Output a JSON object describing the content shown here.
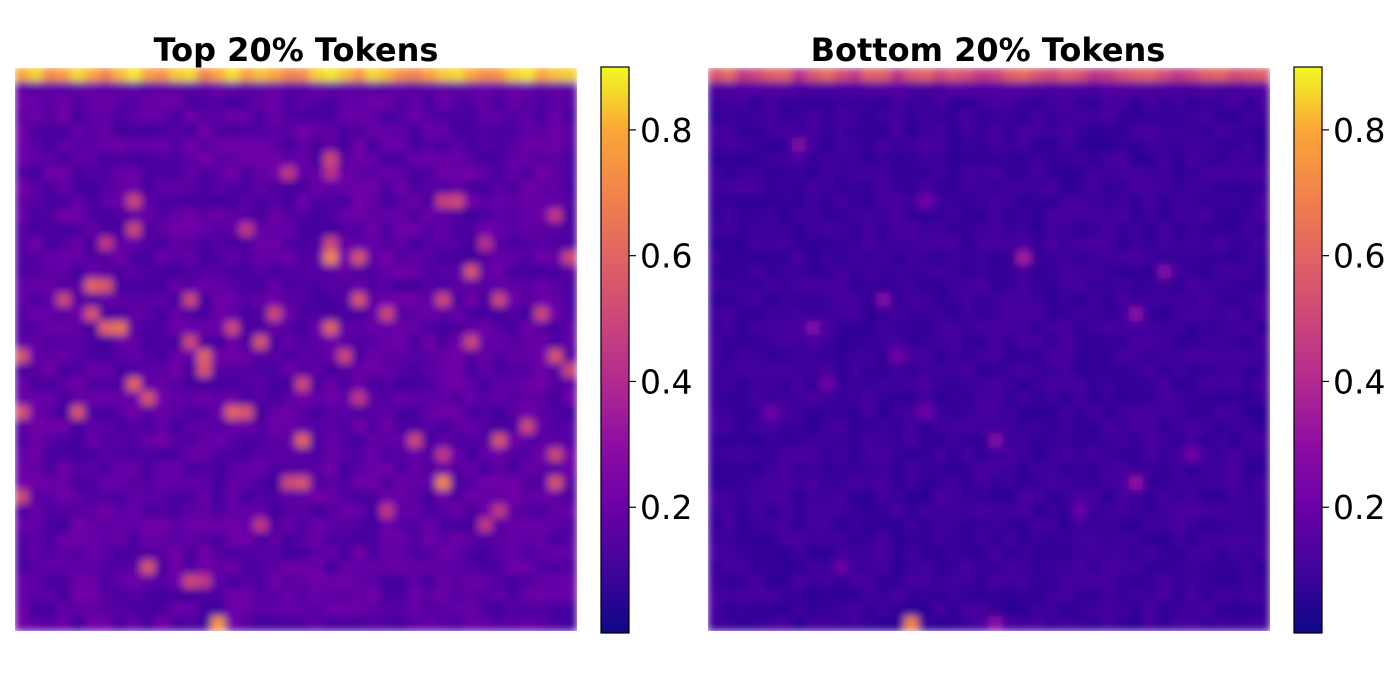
{
  "chart_data": [
    {
      "type": "heatmap",
      "title": "Top 20% Tokens",
      "grid_size": [
        40,
        40
      ],
      "colormap": "plasma",
      "colorbar": {
        "ticks": [
          0.2,
          0.4,
          0.6,
          0.8
        ],
        "tick_labels": [
          "0.2",
          "0.4",
          "0.6",
          "0.8"
        ],
        "range": [
          0.0,
          0.9
        ]
      },
      "axes_visible": false,
      "values_note_rows": "row 0 is top; values in colorbar units (0 to 0.9)",
      "row0_values": [
        0.8,
        0.85,
        0.72,
        0.78,
        0.86,
        0.8,
        0.7,
        0.82,
        0.88,
        0.78,
        0.74,
        0.84,
        0.86,
        0.7,
        0.8,
        0.87,
        0.78,
        0.83,
        0.8,
        0.7,
        0.72,
        0.85,
        0.88,
        0.83,
        0.76,
        0.86,
        0.82,
        0.73,
        0.7,
        0.78,
        0.84,
        0.86,
        0.8,
        0.72,
        0.76,
        0.85,
        0.88,
        0.8,
        0.83,
        0.85
      ],
      "hotspots": [
        {
          "r": 6,
          "c": 22,
          "v": 0.5
        },
        {
          "r": 7,
          "c": 19,
          "v": 0.45
        },
        {
          "r": 7,
          "c": 22,
          "v": 0.42
        },
        {
          "r": 9,
          "c": 8,
          "v": 0.5
        },
        {
          "r": 9,
          "c": 30,
          "v": 0.48
        },
        {
          "r": 9,
          "c": 31,
          "v": 0.5
        },
        {
          "r": 10,
          "c": 38,
          "v": 0.45
        },
        {
          "r": 11,
          "c": 8,
          "v": 0.5
        },
        {
          "r": 11,
          "c": 16,
          "v": 0.45
        },
        {
          "r": 12,
          "c": 6,
          "v": 0.45
        },
        {
          "r": 12,
          "c": 22,
          "v": 0.5
        },
        {
          "r": 12,
          "c": 33,
          "v": 0.42
        },
        {
          "r": 13,
          "c": 22,
          "v": 0.7
        },
        {
          "r": 13,
          "c": 24,
          "v": 0.55
        },
        {
          "r": 13,
          "c": 39,
          "v": 0.5
        },
        {
          "r": 14,
          "c": 32,
          "v": 0.55
        },
        {
          "r": 15,
          "c": 5,
          "v": 0.6
        },
        {
          "r": 15,
          "c": 6,
          "v": 0.55
        },
        {
          "r": 16,
          "c": 3,
          "v": 0.5
        },
        {
          "r": 16,
          "c": 12,
          "v": 0.5
        },
        {
          "r": 16,
          "c": 24,
          "v": 0.55
        },
        {
          "r": 16,
          "c": 30,
          "v": 0.5
        },
        {
          "r": 16,
          "c": 34,
          "v": 0.5
        },
        {
          "r": 17,
          "c": 5,
          "v": 0.55
        },
        {
          "r": 17,
          "c": 18,
          "v": 0.5
        },
        {
          "r": 17,
          "c": 26,
          "v": 0.5
        },
        {
          "r": 17,
          "c": 37,
          "v": 0.5
        },
        {
          "r": 18,
          "c": 6,
          "v": 0.6
        },
        {
          "r": 18,
          "c": 7,
          "v": 0.65
        },
        {
          "r": 18,
          "c": 15,
          "v": 0.5
        },
        {
          "r": 18,
          "c": 22,
          "v": 0.6
        },
        {
          "r": 19,
          "c": 12,
          "v": 0.5
        },
        {
          "r": 19,
          "c": 17,
          "v": 0.55
        },
        {
          "r": 19,
          "c": 32,
          "v": 0.5
        },
        {
          "r": 20,
          "c": 0,
          "v": 0.55
        },
        {
          "r": 20,
          "c": 13,
          "v": 0.6
        },
        {
          "r": 20,
          "c": 23,
          "v": 0.5
        },
        {
          "r": 20,
          "c": 38,
          "v": 0.55
        },
        {
          "r": 21,
          "c": 13,
          "v": 0.55
        },
        {
          "r": 21,
          "c": 39,
          "v": 0.5
        },
        {
          "r": 22,
          "c": 8,
          "v": 0.6
        },
        {
          "r": 22,
          "c": 20,
          "v": 0.5
        },
        {
          "r": 23,
          "c": 9,
          "v": 0.55
        },
        {
          "r": 23,
          "c": 24,
          "v": 0.45
        },
        {
          "r": 24,
          "c": 0,
          "v": 0.55
        },
        {
          "r": 24,
          "c": 4,
          "v": 0.55
        },
        {
          "r": 24,
          "c": 15,
          "v": 0.6
        },
        {
          "r": 24,
          "c": 16,
          "v": 0.55
        },
        {
          "r": 25,
          "c": 36,
          "v": 0.5
        },
        {
          "r": 26,
          "c": 20,
          "v": 0.6
        },
        {
          "r": 26,
          "c": 28,
          "v": 0.5
        },
        {
          "r": 26,
          "c": 34,
          "v": 0.55
        },
        {
          "r": 27,
          "c": 30,
          "v": 0.45
        },
        {
          "r": 27,
          "c": 38,
          "v": 0.5
        },
        {
          "r": 29,
          "c": 19,
          "v": 0.5
        },
        {
          "r": 29,
          "c": 20,
          "v": 0.55
        },
        {
          "r": 29,
          "c": 30,
          "v": 0.7
        },
        {
          "r": 29,
          "c": 38,
          "v": 0.55
        },
        {
          "r": 30,
          "c": 0,
          "v": 0.5
        },
        {
          "r": 31,
          "c": 26,
          "v": 0.45
        },
        {
          "r": 31,
          "c": 34,
          "v": 0.45
        },
        {
          "r": 32,
          "c": 17,
          "v": 0.45
        },
        {
          "r": 32,
          "c": 33,
          "v": 0.45
        },
        {
          "r": 35,
          "c": 9,
          "v": 0.55
        },
        {
          "r": 36,
          "c": 12,
          "v": 0.5
        },
        {
          "r": 36,
          "c": 13,
          "v": 0.45
        },
        {
          "r": 39,
          "c": 14,
          "v": 0.75
        }
      ],
      "base_level": 0.1
    },
    {
      "type": "heatmap",
      "title": "Bottom 20% Tokens",
      "grid_size": [
        40,
        40
      ],
      "colormap": "plasma",
      "colorbar": {
        "ticks": [
          0.2,
          0.4,
          0.6,
          0.8
        ],
        "tick_labels": [
          "0.2",
          "0.4",
          "0.6",
          "0.8"
        ],
        "range": [
          0.0,
          0.9
        ]
      },
      "axes_visible": false,
      "values_note_rows": "row 0 is top; values in colorbar units (0 to 0.9)",
      "row0_values": [
        0.55,
        0.62,
        0.45,
        0.5,
        0.58,
        0.6,
        0.42,
        0.55,
        0.62,
        0.52,
        0.46,
        0.6,
        0.58,
        0.44,
        0.55,
        0.6,
        0.5,
        0.56,
        0.52,
        0.45,
        0.48,
        0.58,
        0.62,
        0.55,
        0.5,
        0.58,
        0.54,
        0.44,
        0.46,
        0.52,
        0.58,
        0.6,
        0.52,
        0.45,
        0.5,
        0.58,
        0.6,
        0.52,
        0.55,
        0.58
      ],
      "hotspots": [
        {
          "r": 5,
          "c": 6,
          "v": 0.25
        },
        {
          "r": 9,
          "c": 15,
          "v": 0.22
        },
        {
          "r": 13,
          "c": 22,
          "v": 0.35
        },
        {
          "r": 14,
          "c": 32,
          "v": 0.25
        },
        {
          "r": 16,
          "c": 12,
          "v": 0.25
        },
        {
          "r": 17,
          "c": 30,
          "v": 0.28
        },
        {
          "r": 18,
          "c": 7,
          "v": 0.25
        },
        {
          "r": 20,
          "c": 13,
          "v": 0.22
        },
        {
          "r": 22,
          "c": 8,
          "v": 0.22
        },
        {
          "r": 24,
          "c": 4,
          "v": 0.22
        },
        {
          "r": 24,
          "c": 15,
          "v": 0.22
        },
        {
          "r": 26,
          "c": 20,
          "v": 0.25
        },
        {
          "r": 27,
          "c": 34,
          "v": 0.22
        },
        {
          "r": 29,
          "c": 30,
          "v": 0.3
        },
        {
          "r": 31,
          "c": 26,
          "v": 0.2
        },
        {
          "r": 35,
          "c": 9,
          "v": 0.2
        },
        {
          "r": 39,
          "c": 14,
          "v": 0.7
        },
        {
          "r": 39,
          "c": 20,
          "v": 0.28
        }
      ],
      "base_level": 0.06
    }
  ]
}
